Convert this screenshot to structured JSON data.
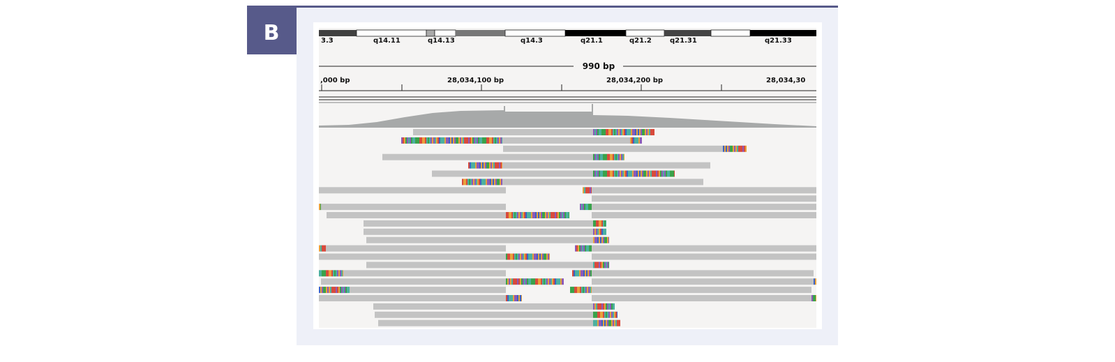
{
  "panel_label": "B",
  "cytobands": [
    "3.3",
    "q14.11",
    "q14.13",
    "q14.3",
    "q21.1",
    "q21.2",
    "q21.31",
    "q21.33"
  ],
  "region_width": "990 bp",
  "ruler_labels": [
    ",000 bp",
    "28,034,100 bp",
    "28,034,200 bp",
    "28,034,30"
  ]
}
